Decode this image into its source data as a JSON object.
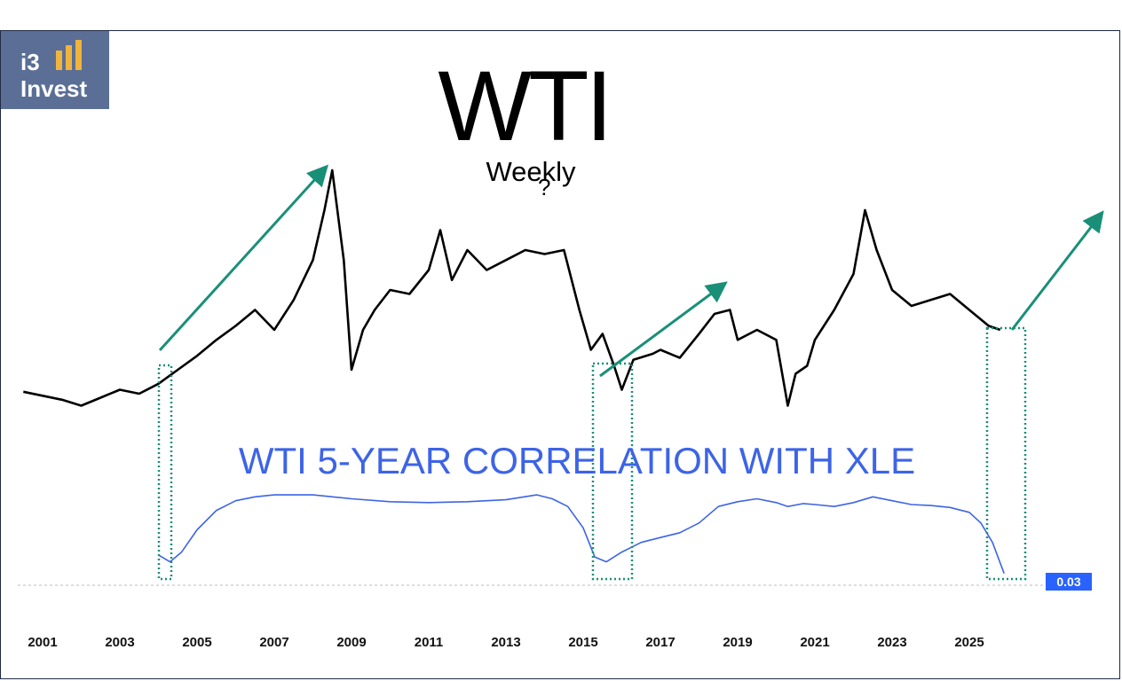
{
  "logo": {
    "line1": "i3",
    "line2": "Invest"
  },
  "header": {
    "title": "WTI",
    "subtitle": "Weekly",
    "annotation_char": "?"
  },
  "correlation_label": "WTI 5-YEAR CORRELATION WITH XLE",
  "value_badge": "0.03",
  "colors": {
    "price": "#000000",
    "correlation": "#3d64e6",
    "arrows": "#1a8f78",
    "highlight": "#1a8f78",
    "badge": "#2962ff",
    "logo_bg": "#5b6f96",
    "logo_bars": "#f0b43c"
  },
  "chart_data": [
    {
      "type": "line",
      "title": "WTI",
      "subtitle": "Weekly",
      "xlabel": "",
      "ylabel": "",
      "x_ticks": [
        "2001",
        "2003",
        "2005",
        "2007",
        "2009",
        "2011",
        "2013",
        "2015",
        "2017",
        "2019",
        "2021",
        "2023",
        "2025"
      ],
      "series": [
        {
          "x": [
            2000.5,
            2001.0,
            2001.5,
            2002.0,
            2002.5,
            2003.0,
            2003.5,
            2004.0,
            2004.5,
            2005.0,
            2005.5,
            2006.0,
            2006.5,
            2007.0,
            2007.5,
            2008.0,
            2008.3,
            2008.5,
            2008.8,
            2009.0,
            2009.3,
            2009.6,
            2010.0,
            2010.5,
            2011.0,
            2011.3,
            2011.6,
            2012.0,
            2012.5,
            2013.0,
            2013.5,
            2014.0,
            2014.5,
            2014.9,
            2015.2,
            2015.5,
            2015.8,
            2016.0,
            2016.3,
            2016.8,
            2017.0,
            2017.5,
            2018.0,
            2018.4,
            2018.8,
            2019.0,
            2019.5,
            2020.0,
            2020.3,
            2020.5,
            2020.8,
            2021.0,
            2021.5,
            2022.0,
            2022.3,
            2022.6,
            2023.0,
            2023.5,
            2024.0,
            2024.5,
            2025.0,
            2025.5,
            2025.8
          ],
          "y": [
            29,
            27,
            25,
            22,
            26,
            30,
            28,
            33,
            40,
            47,
            55,
            62,
            70,
            60,
            75,
            95,
            120,
            140,
            95,
            40,
            60,
            70,
            80,
            78,
            90,
            110,
            85,
            100,
            90,
            95,
            100,
            98,
            100,
            70,
            50,
            58,
            42,
            30,
            45,
            48,
            50,
            46,
            58,
            68,
            70,
            55,
            60,
            55,
            22,
            38,
            42,
            55,
            70,
            88,
            120,
            100,
            80,
            72,
            75,
            78,
            70,
            62,
            60
          ]
        }
      ]
    },
    {
      "type": "line",
      "title": "WTI 5-YEAR CORRELATION WITH XLE",
      "x_ticks": [
        "2001",
        "2003",
        "2005",
        "2007",
        "2009",
        "2011",
        "2013",
        "2015",
        "2017",
        "2019",
        "2021",
        "2023",
        "2025"
      ],
      "last_value": 0.03,
      "series": [
        {
          "x": [
            2004.0,
            2004.3,
            2004.6,
            2005.0,
            2005.5,
            2006.0,
            2006.5,
            2007.0,
            2008.0,
            2009.0,
            2010.0,
            2011.0,
            2012.0,
            2013.0,
            2013.8,
            2014.2,
            2014.6,
            2015.0,
            2015.3,
            2015.6,
            2016.0,
            2016.5,
            2017.0,
            2017.5,
            2018.0,
            2018.5,
            2019.0,
            2019.5,
            2020.0,
            2020.3,
            2020.7,
            2021.0,
            2021.5,
            2022.0,
            2022.5,
            2023.0,
            2023.5,
            2024.0,
            2024.5,
            2025.0,
            2025.3,
            2025.6,
            2025.9
          ],
          "y": [
            0.22,
            0.15,
            0.25,
            0.48,
            0.68,
            0.78,
            0.82,
            0.84,
            0.84,
            0.8,
            0.77,
            0.76,
            0.77,
            0.79,
            0.84,
            0.8,
            0.72,
            0.5,
            0.2,
            0.15,
            0.25,
            0.35,
            0.4,
            0.45,
            0.55,
            0.72,
            0.77,
            0.8,
            0.76,
            0.72,
            0.75,
            0.74,
            0.72,
            0.76,
            0.82,
            0.78,
            0.74,
            0.73,
            0.71,
            0.66,
            0.55,
            0.35,
            0.03
          ]
        }
      ]
    }
  ]
}
